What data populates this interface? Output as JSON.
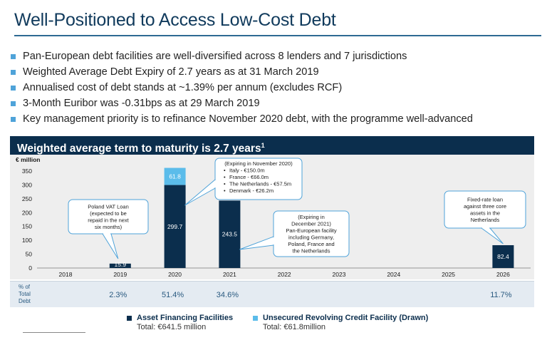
{
  "title": "Well-Positioned to Access Low-Cost Debt",
  "bullets": [
    "Pan-European debt facilities are well-diversified across 8 lenders and 7 jurisdictions",
    "Weighted Average Debt Expiry of 2.7 years as at 31 March 2019",
    "Annualised cost of debt stands at ~1.39% per annum (excludes RCF)",
    "3-Month Euribor was -0.31bps as at 29 March 2019",
    "Key management priority is to refinance November 2020 debt, with the programme well-advanced"
  ],
  "chart_banner": "Weighted average term to maturity is 2.7 years",
  "chart_banner_footnote": "1",
  "colors": {
    "asset": "#0b2e4d",
    "rcf": "#5bbcea",
    "banner": "#0b2e4d",
    "bullet": "#4fa3d9"
  },
  "chart_data": {
    "type": "bar",
    "stacked": true,
    "ylabel": "€ million",
    "ylim": [
      0,
      350
    ],
    "yticks": [
      0,
      50,
      100,
      150,
      200,
      250,
      300,
      350
    ],
    "categories": [
      "2018",
      "2019",
      "2020",
      "2021",
      "2022",
      "2023",
      "2024",
      "2025",
      "2026"
    ],
    "series": [
      {
        "name": "Asset Financing Facilities",
        "values": [
          0,
          15.9,
          299.7,
          243.5,
          0,
          0,
          0,
          0,
          82.4
        ],
        "labels": [
          "",
          "15.9",
          "299.7",
          "243.5",
          "",
          "",
          "",
          "",
          "82.4"
        ]
      },
      {
        "name": "Unsecured Revolving Credit Facility (Drawn)",
        "values": [
          0,
          0,
          61.8,
          0,
          0,
          0,
          0,
          0,
          0
        ],
        "labels": [
          "",
          "",
          "61.8",
          "",
          "",
          "",
          "",
          "",
          ""
        ]
      }
    ],
    "pct_row_label": [
      "% of",
      "Total",
      "Debt"
    ],
    "pct_of_total": [
      "",
      "2.3%",
      "51.4%",
      "34.6%",
      "",
      "",
      "",
      "",
      "11.7%"
    ],
    "legend": [
      {
        "name": "Asset Financing Facilities",
        "total": "Total: €641.5 million"
      },
      {
        "name": "Unsecured Revolving Credit Facility (Drawn)",
        "total": "Total: €61.8million"
      }
    ],
    "callouts": [
      {
        "id": "poland",
        "lines": [
          "Poland VAT Loan",
          "(expected to be",
          "repaid in the next",
          "six months)"
        ]
      },
      {
        "id": "nov2020",
        "lines": [
          "(Expiring in November 2020)",
          "Italy - €150.0m",
          "France - €66.0m",
          "The Netherlands - €57.5m",
          "Denmark - €26.2m"
        ]
      },
      {
        "id": "dec2021",
        "lines": [
          "(Expiring in",
          "December 2021)",
          "Pan-European facility",
          "including Germany,",
          "Poland, France and",
          "the Netherlands"
        ]
      },
      {
        "id": "fixed2026",
        "lines": [
          "Fixed-rate loan",
          "against three core",
          "assets in the",
          "Netherlands"
        ]
      }
    ]
  }
}
